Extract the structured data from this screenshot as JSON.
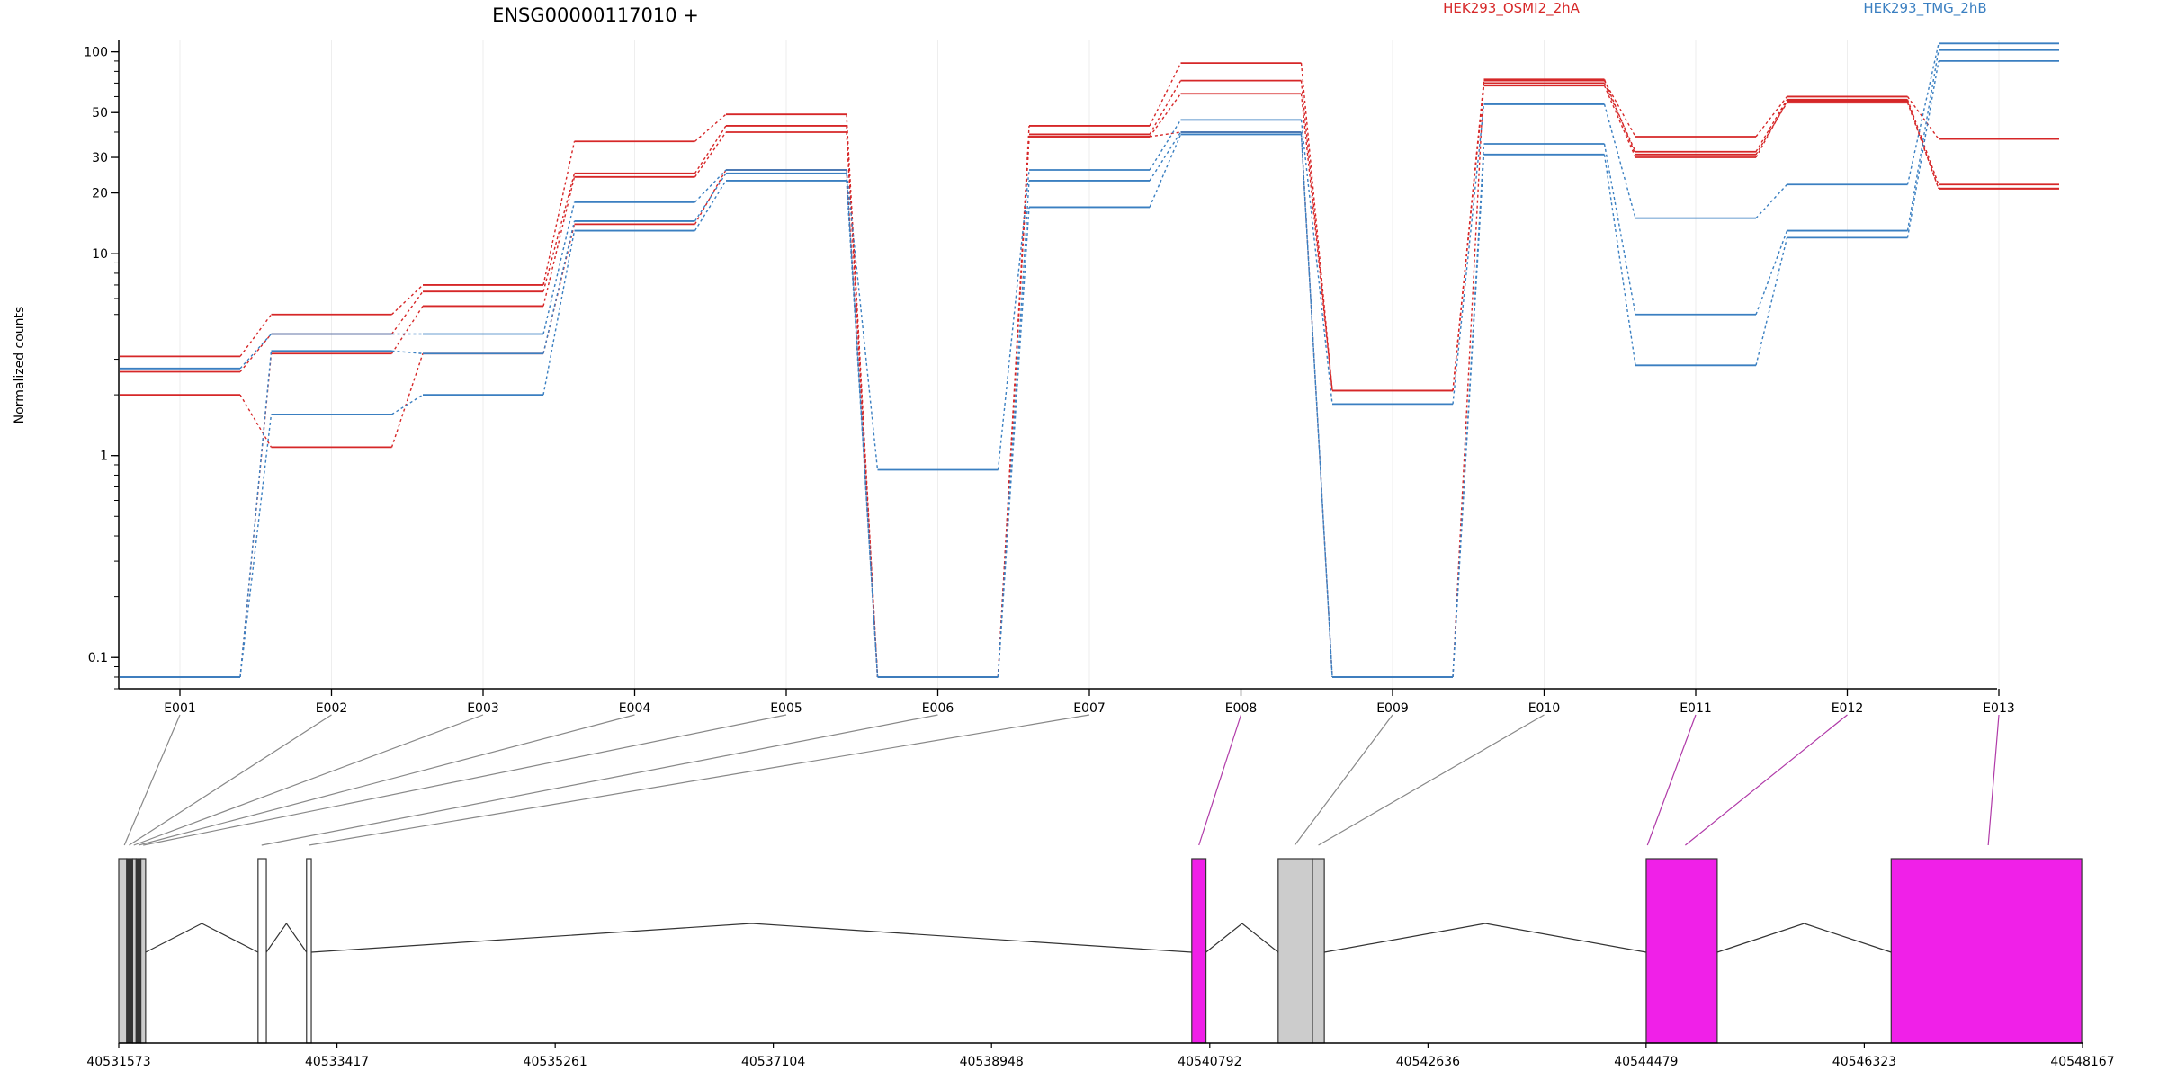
{
  "chart_data": {
    "type": "line",
    "title": "ENSG00000117010 +",
    "ylabel": "Normalized counts",
    "xlabel": "",
    "yscale": "log",
    "ylim": [
      0.07,
      115
    ],
    "yticks": [
      0.1,
      1,
      10,
      20,
      30,
      50,
      100
    ],
    "ytick_labels": [
      "0.1",
      "1",
      "10",
      "20",
      "30",
      "50",
      "100"
    ],
    "categories": [
      "E001",
      "E002",
      "E003",
      "E004",
      "E005",
      "E006",
      "E007",
      "E008",
      "E009",
      "E010",
      "E011",
      "E012",
      "E013"
    ],
    "legend": {
      "placement": "top",
      "entries": [
        "HEK293_OSMI2_2hA",
        "HEK293_TMG_2hB"
      ]
    },
    "series": [
      {
        "name": "HEK293_OSMI2_2hA",
        "color": "#d62728",
        "values": [
          3.1,
          5.0,
          7.0,
          36,
          49,
          0.08,
          43,
          88,
          2.1,
          72,
          38,
          60,
          37
        ]
      },
      {
        "name": "HEK293_OSMI2_2hA",
        "color": "#d62728",
        "values": [
          2.6,
          4.0,
          6.5,
          25,
          43,
          0.08,
          39,
          72,
          2.1,
          70,
          32,
          58,
          22
        ]
      },
      {
        "name": "HEK293_OSMI2_2hA",
        "color": "#d62728",
        "values": [
          0.08,
          3.2,
          5.5,
          24,
          40,
          0.08,
          38,
          62,
          2.1,
          68,
          30,
          57,
          21
        ]
      },
      {
        "name": "HEK293_OSMI2_2hA",
        "color": "#d62728",
        "values": [
          2.0,
          1.1,
          3.2,
          14,
          26,
          0.08,
          38,
          40,
          0.08,
          73,
          31,
          56,
          21
        ]
      },
      {
        "name": "HEK293_TMG_2hB",
        "color": "#3a7fc1",
        "values": [
          2.7,
          4.0,
          4.0,
          18,
          26,
          0.85,
          26,
          46,
          1.8,
          55,
          15,
          22,
          110
        ]
      },
      {
        "name": "HEK293_TMG_2hB",
        "color": "#3a7fc1",
        "values": [
          0.08,
          3.3,
          3.2,
          14.5,
          25,
          0.08,
          23,
          40,
          0.08,
          35,
          5.0,
          13,
          102
        ]
      },
      {
        "name": "HEK293_TMG_2hB",
        "color": "#3a7fc1",
        "values": [
          0.08,
          1.6,
          2.0,
          13,
          23,
          0.08,
          17,
          39,
          0.08,
          31,
          2.8,
          12,
          90
        ]
      }
    ],
    "gene_model": {
      "coordinate_labels": [
        "40531573",
        "40533417",
        "40535261",
        "40537104",
        "40538948",
        "40540792",
        "40542636",
        "40544479",
        "40546323",
        "40548167"
      ],
      "coordinate_ticks": [
        40531573,
        40533417,
        40535261,
        40537104,
        40538948,
        40540792,
        40542636,
        40544479,
        40546323,
        40548167
      ],
      "exons": [
        {
          "start": 40531573,
          "end": 40531640,
          "fill": "#cccccc"
        },
        {
          "start": 40531640,
          "end": 40531690,
          "fill": "#333333"
        },
        {
          "start": 40531690,
          "end": 40531720,
          "fill": "#cccccc"
        },
        {
          "start": 40531720,
          "end": 40531760,
          "fill": "#333333"
        },
        {
          "start": 40531760,
          "end": 40531800,
          "fill": "#cccccc"
        },
        {
          "start": 40532750,
          "end": 40532820,
          "fill": "#ffffff"
        },
        {
          "start": 40533160,
          "end": 40533200,
          "fill": "#ffffff"
        },
        {
          "start": 40540640,
          "end": 40540760,
          "fill": "#f020e8"
        },
        {
          "start": 40541370,
          "end": 40541660,
          "fill": "#cccccc"
        },
        {
          "start": 40541660,
          "end": 40541760,
          "fill": "#cccccc"
        },
        {
          "start": 40544480,
          "end": 40545080,
          "fill": "#f020e8"
        },
        {
          "start": 40546550,
          "end": 40548160,
          "fill": "#f020e8"
        }
      ],
      "introns": [
        [
          40531800,
          40532750
        ],
        [
          40532820,
          40533160
        ],
        [
          40533200,
          40540640
        ],
        [
          40540760,
          40541370
        ],
        [
          40541760,
          40544480
        ],
        [
          40545080,
          40546550
        ]
      ],
      "bin_map": [
        {
          "bin": "E001",
          "genomic": 40531620,
          "color": "#888888"
        },
        {
          "bin": "E002",
          "genomic": 40531660,
          "color": "#888888"
        },
        {
          "bin": "E003",
          "genomic": 40531700,
          "color": "#888888"
        },
        {
          "bin": "E004",
          "genomic": 40531740,
          "color": "#888888"
        },
        {
          "bin": "E005",
          "genomic": 40531780,
          "color": "#888888"
        },
        {
          "bin": "E006",
          "genomic": 40532780,
          "color": "#888888"
        },
        {
          "bin": "E007",
          "genomic": 40533180,
          "color": "#888888"
        },
        {
          "bin": "E008",
          "genomic": 40540700,
          "color": "#b03aa8"
        },
        {
          "bin": "E009",
          "genomic": 40541510,
          "color": "#888888"
        },
        {
          "bin": "E010",
          "genomic": 40541710,
          "color": "#888888"
        },
        {
          "bin": "E011",
          "genomic": 40544490,
          "color": "#b03aa8"
        },
        {
          "bin": "E012",
          "genomic": 40544810,
          "color": "#b03aa8"
        },
        {
          "bin": "E013",
          "genomic": 40547370,
          "color": "#b03aa8"
        }
      ]
    }
  }
}
